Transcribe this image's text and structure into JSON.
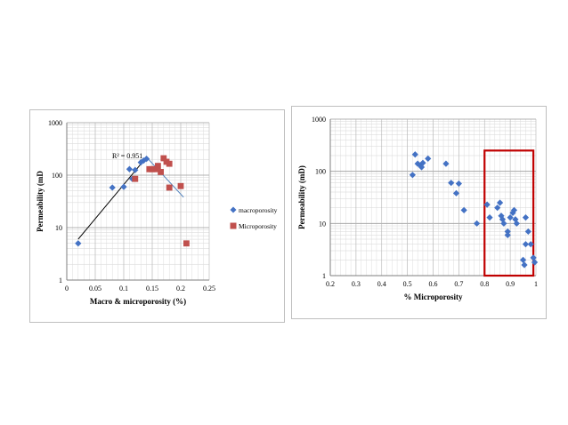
{
  "chart_data": [
    {
      "type": "scatter",
      "xlabel": "Macro & microporosity (%)",
      "ylabel": "Permeability (mD",
      "xlim": [
        0,
        0.25
      ],
      "ylim": [
        1,
        1000
      ],
      "yscale": "log",
      "xticks": [
        "0",
        "0.05",
        "0.1",
        "0.15",
        "0.2",
        "0.25"
      ],
      "yticks": [
        "1",
        "10",
        "100",
        "1000"
      ],
      "grid": true,
      "legend": "right",
      "annotation": "R² = 0.951",
      "series": [
        {
          "name": "macroporosity",
          "marker": "diamond",
          "color": "#4472C4",
          "points": [
            [
              0.02,
              5
            ],
            [
              0.08,
              58
            ],
            [
              0.1,
              60
            ],
            [
              0.11,
              130
            ],
            [
              0.12,
              125
            ],
            [
              0.13,
              175
            ],
            [
              0.135,
              190
            ],
            [
              0.14,
              205
            ],
            [
              0.115,
              85
            ]
          ]
        },
        {
          "name": "Microporosity",
          "marker": "square",
          "color": "#C0504D",
          "points": [
            [
              0.12,
              85
            ],
            [
              0.145,
              130
            ],
            [
              0.15,
              130
            ],
            [
              0.155,
              130
            ],
            [
              0.16,
              150
            ],
            [
              0.165,
              115
            ],
            [
              0.17,
              210
            ],
            [
              0.175,
              180
            ],
            [
              0.18,
              165
            ],
            [
              0.18,
              58
            ],
            [
              0.2,
              62
            ],
            [
              0.21,
              5
            ]
          ]
        }
      ],
      "trendlines": [
        {
          "color": "#000000",
          "from": [
            0.02,
            6
          ],
          "to": [
            0.14,
            220
          ]
        },
        {
          "color": "#4F81BD",
          "from": [
            0.14,
            220
          ],
          "to": [
            0.205,
            38
          ]
        }
      ]
    },
    {
      "type": "scatter",
      "xlabel": "% Microporosity",
      "ylabel": "Permeability (mD)",
      "xlim": [
        0.2,
        1
      ],
      "ylim": [
        1,
        1000
      ],
      "yscale": "log",
      "xticks": [
        "0.2",
        "0.3",
        "0.4",
        "0.5",
        "0.6",
        "0.7",
        "0.8",
        "0.9",
        "1"
      ],
      "yticks": [
        "1",
        "10",
        "100",
        "1000"
      ],
      "grid": true,
      "highlight_box": {
        "x": [
          0.8,
          0.99
        ],
        "y": [
          1,
          250
        ],
        "color": "#C00000"
      },
      "series": [
        {
          "marker": "diamond",
          "color": "#4472C4",
          "points": [
            [
              0.52,
              85
            ],
            [
              0.53,
              210
            ],
            [
              0.54,
              140
            ],
            [
              0.55,
              130
            ],
            [
              0.555,
              120
            ],
            [
              0.56,
              145
            ],
            [
              0.58,
              175
            ],
            [
              0.65,
              140
            ],
            [
              0.67,
              60
            ],
            [
              0.69,
              38
            ],
            [
              0.7,
              58
            ],
            [
              0.72,
              18
            ],
            [
              0.77,
              10
            ],
            [
              0.81,
              23
            ],
            [
              0.82,
              13
            ],
            [
              0.85,
              20
            ],
            [
              0.86,
              25
            ],
            [
              0.865,
              14
            ],
            [
              0.87,
              12
            ],
            [
              0.875,
              10
            ],
            [
              0.89,
              7
            ],
            [
              0.89,
              6
            ],
            [
              0.9,
              13
            ],
            [
              0.91,
              16
            ],
            [
              0.915,
              18
            ],
            [
              0.92,
              12
            ],
            [
              0.925,
              10
            ],
            [
              0.95,
              2
            ],
            [
              0.955,
              1.6
            ],
            [
              0.96,
              13
            ],
            [
              0.96,
              4
            ],
            [
              0.97,
              7
            ],
            [
              0.98,
              4
            ],
            [
              0.99,
              2.2
            ],
            [
              0.995,
              1.8
            ]
          ]
        }
      ]
    }
  ]
}
